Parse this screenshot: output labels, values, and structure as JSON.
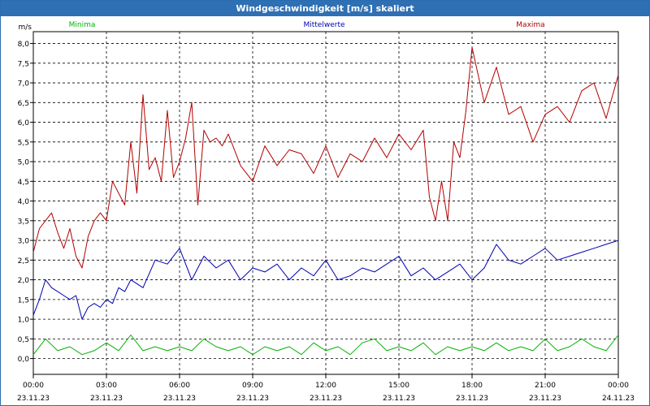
{
  "window": {
    "title": "Windgeschwindigkeit [m/s] skaliert"
  },
  "chart_data": {
    "type": "line",
    "ylabel": "m/s",
    "ylim": [
      -0.4,
      8.3
    ],
    "yticks": [
      "0,0",
      "0,5",
      "1,0",
      "1,5",
      "2,0",
      "2,5",
      "3,0",
      "3,5",
      "4,0",
      "4,5",
      "5,0",
      "5,5",
      "6,0",
      "6,5",
      "7,0",
      "7,5",
      "8,0"
    ],
    "x_hours": [
      0,
      24
    ],
    "xticks": [
      {
        "time": "00:00",
        "date": "23.11.23"
      },
      {
        "time": "03:00",
        "date": "23.11.23"
      },
      {
        "time": "06:00",
        "date": "23.11.23"
      },
      {
        "time": "09:00",
        "date": "23.11.23"
      },
      {
        "time": "12:00",
        "date": "23.11.23"
      },
      {
        "time": "15:00",
        "date": "23.11.23"
      },
      {
        "time": "18:00",
        "date": "23.11.23"
      },
      {
        "time": "21:00",
        "date": "23.11.23"
      },
      {
        "time": "00:00",
        "date": "24.11.23"
      }
    ],
    "grid": true,
    "series": [
      {
        "name": "Minima",
        "color": "#00b400",
        "x": [
          0,
          0.5,
          1,
          1.5,
          2,
          2.5,
          3,
          3.5,
          4,
          4.5,
          5,
          5.5,
          6,
          6.5,
          7,
          7.5,
          8,
          8.5,
          9,
          9.5,
          10,
          10.5,
          11,
          11.5,
          12,
          12.5,
          13,
          13.5,
          14,
          14.5,
          15,
          15.5,
          16,
          16.5,
          17,
          17.5,
          18,
          18.5,
          19,
          19.5,
          20,
          20.5,
          21,
          21.5,
          22,
          22.5,
          23,
          23.5,
          24
        ],
        "values": [
          0.1,
          0.5,
          0.2,
          0.3,
          0.1,
          0.2,
          0.4,
          0.2,
          0.6,
          0.2,
          0.3,
          0.2,
          0.3,
          0.2,
          0.5,
          0.3,
          0.2,
          0.3,
          0.1,
          0.3,
          0.2,
          0.3,
          0.1,
          0.4,
          0.2,
          0.3,
          0.1,
          0.4,
          0.5,
          0.2,
          0.3,
          0.2,
          0.4,
          0.1,
          0.3,
          0.2,
          0.3,
          0.2,
          0.4,
          0.2,
          0.3,
          0.2,
          0.5,
          0.2,
          0.3,
          0.5,
          0.3,
          0.2,
          0.6
        ]
      },
      {
        "name": "Mittelwerte",
        "color": "#0000b4",
        "x": [
          0,
          0.25,
          0.5,
          0.75,
          1,
          1.25,
          1.5,
          1.75,
          2,
          2.25,
          2.5,
          2.75,
          3,
          3.25,
          3.5,
          3.75,
          4,
          4.5,
          5,
          5.5,
          6,
          6.5,
          7,
          7.5,
          8,
          8.5,
          9,
          9.5,
          10,
          10.5,
          11,
          11.5,
          12,
          12.5,
          13,
          13.5,
          14,
          14.5,
          15,
          15.5,
          16,
          16.5,
          17,
          17.5,
          18,
          18.5,
          19,
          19.5,
          20,
          20.5,
          21,
          21.5,
          22,
          22.5,
          23,
          23.5,
          24
        ],
        "values": [
          1.1,
          1.5,
          2.0,
          1.8,
          1.7,
          1.6,
          1.5,
          1.6,
          1.0,
          1.3,
          1.4,
          1.3,
          1.5,
          1.4,
          1.8,
          1.7,
          2.0,
          1.8,
          2.5,
          2.4,
          2.8,
          2.0,
          2.6,
          2.3,
          2.5,
          2.0,
          2.3,
          2.2,
          2.4,
          2.0,
          2.3,
          2.1,
          2.5,
          2.0,
          2.1,
          2.3,
          2.2,
          2.4,
          2.6,
          2.1,
          2.3,
          2.0,
          2.2,
          2.4,
          2.0,
          2.3,
          2.9,
          2.5,
          2.4,
          2.6,
          2.8,
          2.5,
          2.6,
          2.7,
          2.8,
          2.9,
          3.0
        ]
      },
      {
        "name": "Maxima",
        "color": "#b40000",
        "x": [
          0,
          0.25,
          0.5,
          0.75,
          1,
          1.25,
          1.5,
          1.75,
          2,
          2.25,
          2.5,
          2.75,
          3,
          3.25,
          3.5,
          3.75,
          4,
          4.25,
          4.5,
          4.75,
          5,
          5.25,
          5.5,
          5.75,
          6,
          6.25,
          6.5,
          6.75,
          7,
          7.25,
          7.5,
          7.75,
          8,
          8.5,
          9,
          9.5,
          10,
          10.5,
          11,
          11.5,
          12,
          12.5,
          13,
          13.5,
          14,
          14.5,
          15,
          15.5,
          16,
          16.25,
          16.5,
          16.75,
          17,
          17.25,
          17.5,
          17.75,
          18,
          18.5,
          19,
          19.5,
          20,
          20.5,
          21,
          21.5,
          22,
          22.5,
          23,
          23.5,
          24
        ],
        "values": [
          2.7,
          3.3,
          3.5,
          3.7,
          3.2,
          2.8,
          3.3,
          2.6,
          2.3,
          3.1,
          3.5,
          3.7,
          3.5,
          4.5,
          4.2,
          3.9,
          5.5,
          4.2,
          6.7,
          4.8,
          5.1,
          4.5,
          6.3,
          4.6,
          5.0,
          5.6,
          6.5,
          3.9,
          5.8,
          5.5,
          5.6,
          5.4,
          5.7,
          4.9,
          4.5,
          5.4,
          4.9,
          5.3,
          5.2,
          4.7,
          5.4,
          4.6,
          5.2,
          5.0,
          5.6,
          5.1,
          5.7,
          5.3,
          5.8,
          4.1,
          3.5,
          4.5,
          3.5,
          5.5,
          5.1,
          6.3,
          7.9,
          6.5,
          7.4,
          6.2,
          6.4,
          5.5,
          6.2,
          6.4,
          6.0,
          6.8,
          7.0,
          6.1,
          7.2
        ]
      }
    ]
  }
}
